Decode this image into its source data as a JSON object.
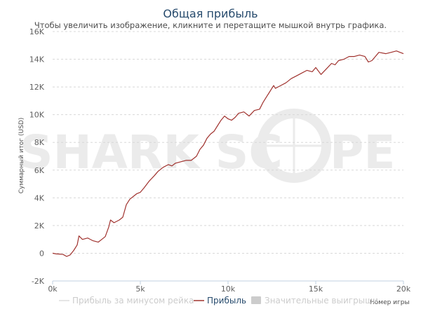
{
  "chart_data": {
    "type": "line",
    "title": "Общая прибыль",
    "subtitle": "Чтобы увеличить изображение, кликните и перетащите мышкой внутрь графика.",
    "xlabel": "Номер игры",
    "ylabel": "Суммарный итог (USD)",
    "xlim": [
      0,
      20000
    ],
    "ylim": [
      -2000,
      16000
    ],
    "x_ticks": [
      0,
      5000,
      10000,
      15000,
      20000
    ],
    "x_tick_labels": [
      "0k",
      "5k",
      "10k",
      "15k",
      "20k"
    ],
    "y_ticks": [
      -2000,
      0,
      2000,
      4000,
      6000,
      8000,
      10000,
      12000,
      14000,
      16000
    ],
    "y_tick_labels": [
      "-2K",
      "0",
      "2K",
      "4K",
      "6K",
      "8K",
      "10K",
      "12K",
      "14K",
      "16K"
    ],
    "grid": true,
    "legend_position": "bottom",
    "series": [
      {
        "name": "Прибыль",
        "color": "#a0322e",
        "x": [
          0,
          200,
          400,
          600,
          800,
          1000,
          1200,
          1400,
          1500,
          1700,
          2000,
          2300,
          2600,
          2800,
          3000,
          3200,
          3300,
          3500,
          3800,
          4000,
          4200,
          4400,
          4600,
          4800,
          5000,
          5200,
          5500,
          5800,
          6000,
          6300,
          6600,
          6800,
          7000,
          7300,
          7600,
          7900,
          8200,
          8400,
          8600,
          8800,
          9000,
          9200,
          9400,
          9600,
          9800,
          10000,
          10200,
          10400,
          10600,
          10900,
          11200,
          11500,
          11800,
          12000,
          12300,
          12600,
          12700,
          13000,
          13300,
          13600,
          13900,
          14200,
          14500,
          14800,
          15000,
          15300,
          15600,
          15900,
          16100,
          16300,
          16600,
          16900,
          17200,
          17500,
          17800,
          18000,
          18200,
          18400,
          18600,
          19000,
          19300,
          19600,
          19800,
          20000
        ],
        "values": [
          0,
          -50,
          -60,
          -90,
          -230,
          -120,
          200,
          600,
          1250,
          1000,
          1100,
          900,
          800,
          1000,
          1200,
          1900,
          2400,
          2200,
          2400,
          2600,
          3500,
          3900,
          4100,
          4300,
          4400,
          4700,
          5200,
          5600,
          5900,
          6200,
          6400,
          6300,
          6500,
          6600,
          6700,
          6700,
          7000,
          7500,
          7800,
          8300,
          8600,
          8800,
          9200,
          9600,
          9900,
          9700,
          9600,
          9800,
          10100,
          10200,
          9900,
          10300,
          10400,
          10900,
          11500,
          12100,
          11900,
          12100,
          12300,
          12600,
          12800,
          13000,
          13200,
          13100,
          13400,
          12900,
          13300,
          13700,
          13600,
          13900,
          14000,
          14200,
          14200,
          14300,
          14200,
          13800,
          13900,
          14200,
          14500,
          14400,
          14500,
          14600,
          14500,
          14400
        ]
      },
      {
        "name": "Прибыль за минусом рейка",
        "color": "#dddddd",
        "visible": false
      },
      {
        "name": "Значительные выигрыши",
        "color": "#cccccc",
        "visible": false
      }
    ],
    "watermark": "SHARK SCOPE"
  }
}
